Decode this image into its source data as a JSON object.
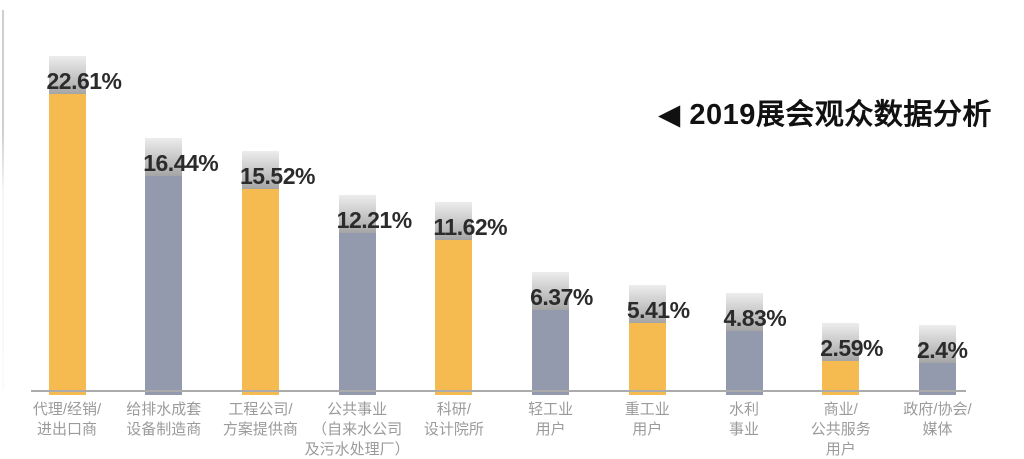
{
  "page": {
    "background_color": "#FFFFFF"
  },
  "header": {
    "title": "◀ 2019展会观众数据分析"
  },
  "chart_data": {
    "type": "bar",
    "title": "2019展会观众数据分析",
    "title_prefix_icon": "left-triangle-icon",
    "categories": [
      "代理/经销/\n进出口商",
      "给排水成套\n设备制造商",
      "工程公司/\n方案提供商",
      "公共事业\n（自来水公司\n及污水处理厂）",
      "科研/\n设计院所",
      "轻工业\n用户",
      "重工业\n用户",
      "水利\n事业",
      "商业/\n公共服务\n用户",
      "政府/协会/\n媒体"
    ],
    "values": [
      22.61,
      16.44,
      15.52,
      12.21,
      11.62,
      6.37,
      5.41,
      4.83,
      2.59,
      2.4
    ],
    "value_labels": [
      "22.61%",
      "16.44%",
      "15.52%",
      "12.21%",
      "11.62%",
      "6.37%",
      "5.41%",
      "4.83%",
      "2.59%",
      "2.4%"
    ],
    "xlabel": "",
    "ylabel": "",
    "ylim": [
      0,
      25
    ],
    "grid": false,
    "legend": false,
    "colors": {
      "bar_color_odd": "#F6BB50",
      "bar_color_even": "#949AAE",
      "cap_gradient_top": "#EDEDED",
      "cap_gradient_bottom": "#A5A5A5",
      "value_label_color": "#2B2B2B",
      "category_label_color": "#9B9B9B",
      "axis_line_color": "#ABABAB"
    }
  }
}
